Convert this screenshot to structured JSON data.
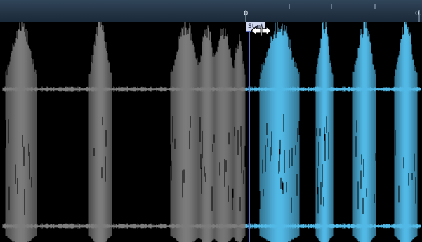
{
  "timeline": {
    "start_label": "0",
    "end_label": "0.5"
  },
  "start_marker": {
    "label": "Start"
  },
  "cursor": {
    "icon": "horizontal-resize-icon"
  },
  "colors": {
    "background": "#000000",
    "inactive_waveform": "#7c7c7c",
    "selected_waveform": "#52b9e6",
    "marker_line": "#5b74c8",
    "ruler": "#2a3c4e"
  }
}
